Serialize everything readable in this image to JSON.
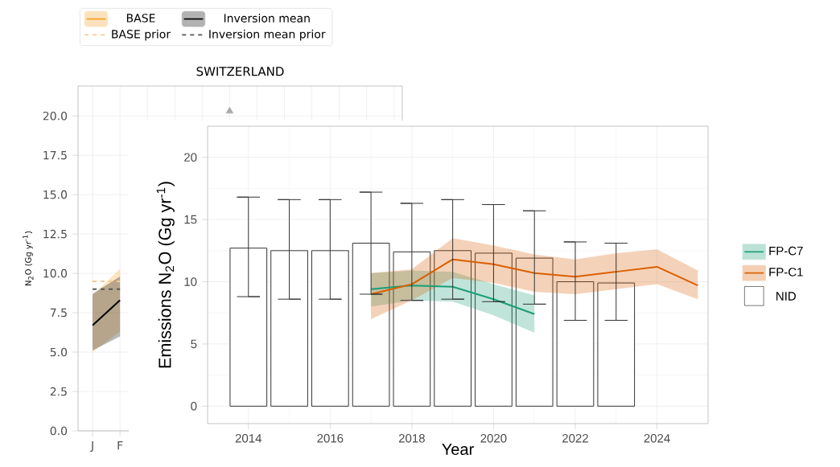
{
  "chart_data": [
    {
      "type": "line",
      "title": "SWITZERLAND",
      "ylabel": "N$_{2}$O  (Gg yr$^{-1}$)",
      "categories": [
        "J",
        "F",
        null,
        null,
        null,
        null,
        null,
        null,
        null,
        null,
        null,
        null
      ],
      "ylim": [
        0,
        21.9
      ],
      "yticks": [
        {
          "value": 0,
          "label": "0.0"
        },
        {
          "value": 2.5,
          "label": "2.5"
        },
        {
          "value": 5,
          "label": "5.0"
        },
        {
          "value": 7.5,
          "label": "7.5"
        },
        {
          "value": 10,
          "label": "10.0"
        },
        {
          "value": 12.5,
          "label": "12.5"
        },
        {
          "value": 15,
          "label": "15.0"
        },
        {
          "value": 17.5,
          "label": "17.5"
        },
        {
          "value": 20,
          "label": "20.0"
        }
      ],
      "grid": true,
      "legend": "top",
      "series": [
        {
          "name": "BASE",
          "color": "#f5a020",
          "values": [
            null,
            null,
            null,
            null,
            null,
            null,
            null,
            null,
            null,
            null,
            null,
            null
          ],
          "lower": [
            5.0,
            6.3,
            null,
            null,
            null,
            null,
            null,
            null,
            null,
            null,
            null,
            null
          ],
          "upper": [
            8.6,
            10.3,
            null,
            null,
            null,
            null,
            null,
            null,
            null,
            null,
            null,
            null
          ]
        },
        {
          "name": "BASE prior",
          "color": "#f8c890",
          "line_style": "dashed",
          "values": [
            9.5,
            9.5,
            null,
            null,
            null,
            null,
            null,
            null,
            null,
            null,
            null,
            null
          ]
        },
        {
          "name": "Inversion mean",
          "color": "#000000",
          "values": [
            6.7,
            8.3,
            null,
            null,
            null,
            null,
            null,
            null,
            null,
            null,
            null,
            null
          ],
          "lower": [
            5.1,
            6.0,
            null,
            null,
            null,
            null,
            null,
            null,
            null,
            null,
            null,
            null
          ],
          "upper": [
            8.7,
            9.8,
            null,
            null,
            null,
            null,
            null,
            null,
            null,
            null,
            null,
            null
          ]
        },
        {
          "name": "Inversion mean prior",
          "color": "#555555",
          "line_style": "dashed",
          "values": [
            9.0,
            9.0,
            null,
            null,
            null,
            null,
            null,
            null,
            null,
            null,
            null,
            null
          ]
        },
        {
          "type": "scatter",
          "color": "#aaaaaa",
          "marker": "triangle",
          "values": [
            null,
            null,
            null,
            null,
            null,
            20.3,
            null,
            null,
            null,
            null,
            null,
            null
          ]
        }
      ]
    },
    {
      "type": "bar",
      "xlabel": "Year",
      "ylabel": "Emissions N$_{2}$O (Gg yr$^{-1}$)",
      "xlim": [
        2013,
        2025.25
      ],
      "ylim": [
        -1.4,
        22.5
      ],
      "xticks": [
        2014,
        2016,
        2018,
        2020,
        2022,
        2024
      ],
      "yticks": [
        0,
        5,
        10,
        15,
        20
      ],
      "grid": true,
      "legend": "right",
      "series": [
        {
          "name": "FP-C7",
          "type": "line",
          "color": "#1b9e77",
          "x": [
            2017,
            2018,
            2019,
            2020,
            2021
          ],
          "values": [
            9.4,
            9.7,
            9.6,
            8.6,
            7.4
          ],
          "lower": [
            8.0,
            8.5,
            8.4,
            7.3,
            5.9
          ],
          "upper": [
            10.7,
            10.9,
            10.8,
            9.8,
            8.9
          ]
        },
        {
          "name": "FP-C1",
          "type": "line",
          "color": "#d95f02",
          "x": [
            2017,
            2018,
            2019,
            2020,
            2021,
            2022,
            2023,
            2024,
            2025
          ],
          "values": [
            9.0,
            9.8,
            11.8,
            11.4,
            10.7,
            10.4,
            10.8,
            11.2,
            9.7
          ],
          "lower": [
            7.0,
            8.5,
            10.3,
            9.9,
            9.2,
            9.0,
            9.4,
            9.8,
            8.6
          ],
          "upper": [
            10.7,
            11.0,
            13.5,
            12.9,
            12.2,
            11.8,
            12.3,
            12.6,
            10.9
          ]
        },
        {
          "name": "NID",
          "type": "bar",
          "color": "#333333",
          "x": [
            2014,
            2015,
            2016,
            2017,
            2018,
            2019,
            2020,
            2021,
            2022,
            2023
          ],
          "values": [
            12.7,
            12.5,
            12.5,
            13.1,
            12.4,
            12.5,
            12.3,
            11.9,
            10.0,
            9.9
          ],
          "errors": [
            [
              8.8,
              16.8
            ],
            [
              8.6,
              16.6
            ],
            [
              8.6,
              16.6
            ],
            [
              9.0,
              17.2
            ],
            [
              8.5,
              16.3
            ],
            [
              8.6,
              16.6
            ],
            [
              8.4,
              16.2
            ],
            [
              8.2,
              15.7
            ],
            [
              6.9,
              13.2
            ],
            [
              6.9,
              13.1
            ]
          ]
        }
      ]
    }
  ]
}
